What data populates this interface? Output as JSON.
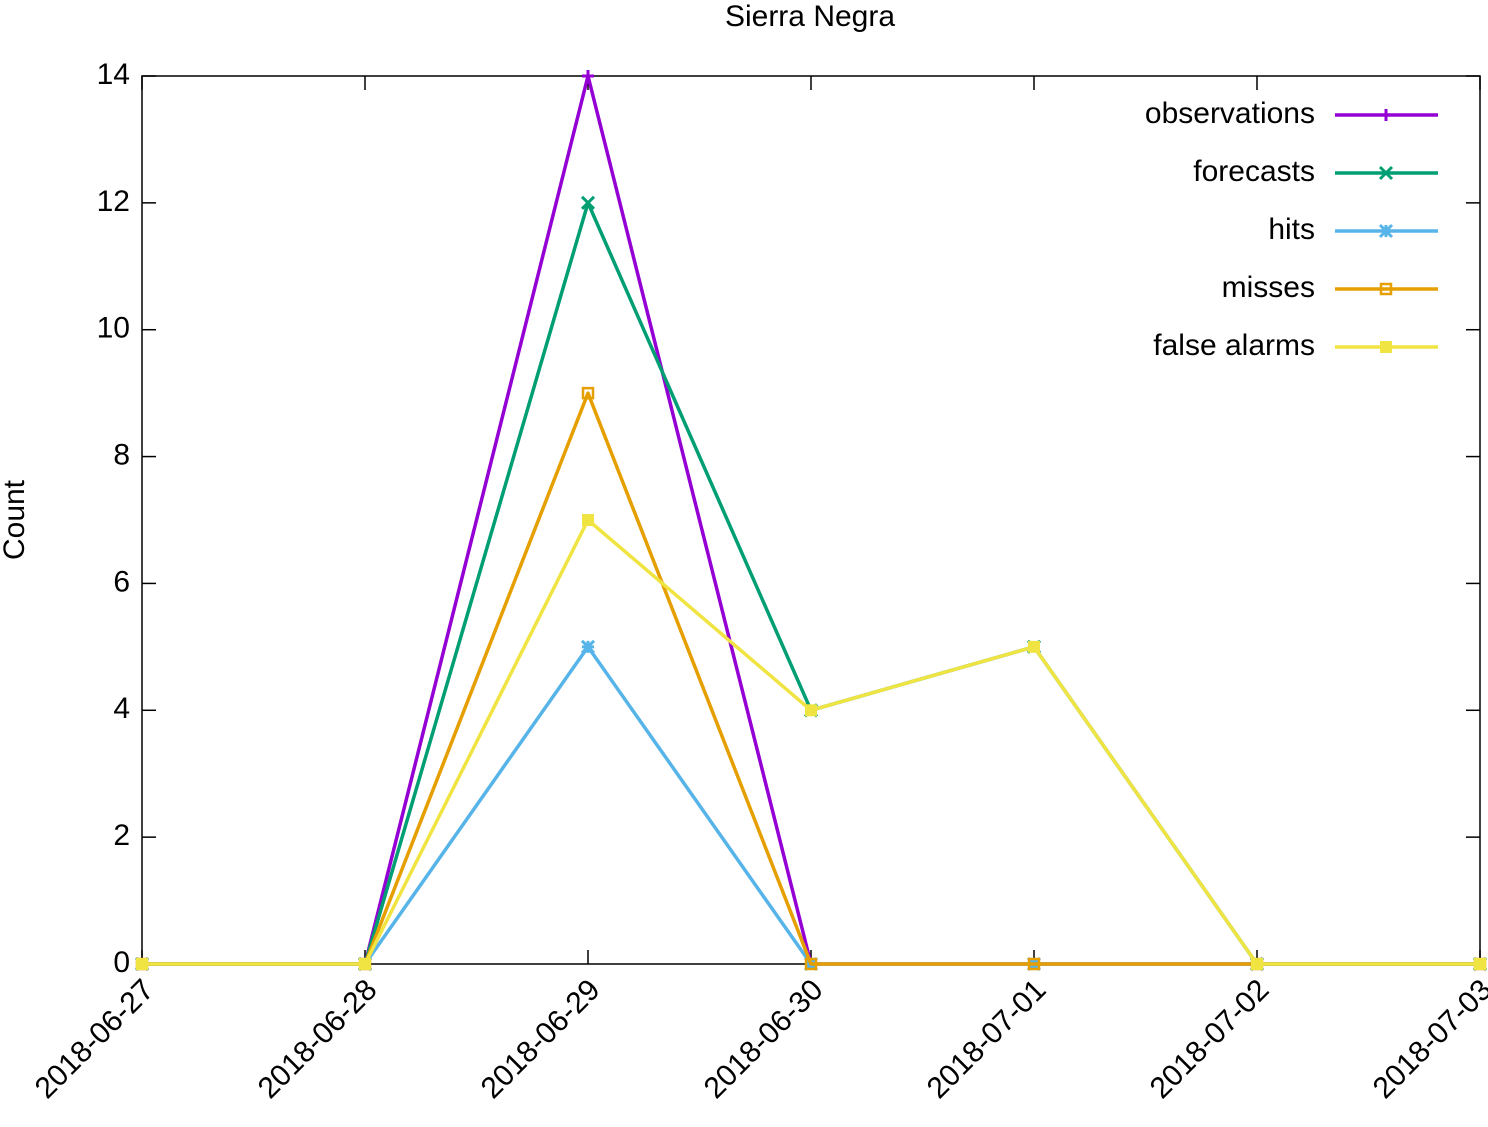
{
  "chart_data": {
    "type": "line",
    "title": "Sierra Negra",
    "y_label": "Count",
    "x": [
      "2018-06-27",
      "2018-06-28",
      "2018-06-29",
      "2018-06-30",
      "2018-07-01",
      "2018-07-02",
      "2018-07-03"
    ],
    "xlim": [
      "2018-06-27",
      "2018-07-03"
    ],
    "xticks": [
      "2018-06-27",
      "2018-06-28",
      "2018-06-29",
      "2018-06-30",
      "2018-07-01",
      "2018-07-02",
      "2018-07-03"
    ],
    "ylim": [
      0,
      14
    ],
    "yticks": [
      0,
      2,
      4,
      6,
      8,
      10,
      12,
      14
    ],
    "legend": "top right",
    "series": [
      {
        "name": "observations",
        "color": "#9400d3",
        "marker": "plus",
        "values": [
          0,
          0,
          14,
          0,
          0,
          0,
          0
        ]
      },
      {
        "name": "forecasts",
        "color": "#009e73",
        "marker": "cross",
        "values": [
          0,
          0,
          12,
          4,
          5,
          0,
          0
        ]
      },
      {
        "name": "hits",
        "color": "#56b4e9",
        "marker": "star",
        "values": [
          0,
          0,
          5,
          0,
          0,
          0,
          0
        ]
      },
      {
        "name": "misses",
        "color": "#e69f00",
        "marker": "open-square",
        "values": [
          0,
          0,
          9,
          0,
          0,
          0,
          0
        ]
      },
      {
        "name": "false alarms",
        "color": "#f0e442",
        "marker": "square",
        "values": [
          0,
          0,
          7,
          4,
          5,
          0,
          0
        ]
      }
    ]
  }
}
